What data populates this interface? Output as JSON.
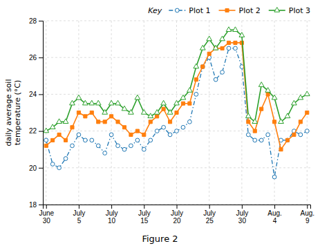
{
  "chart_data": {
    "type": "line",
    "title": "Figure 2",
    "ylabel": "daily average soil\ntemperature (°C)",
    "categories": [
      "June\n30",
      null,
      null,
      null,
      null,
      "July\n5",
      null,
      null,
      null,
      null,
      "July\n10",
      null,
      null,
      null,
      null,
      "July\n15",
      null,
      null,
      null,
      null,
      "July\n20",
      null,
      null,
      null,
      null,
      "July\n25",
      null,
      null,
      null,
      null,
      "July\n30",
      null,
      null,
      null,
      null,
      "Aug.\n4",
      null,
      null,
      null,
      null,
      "Aug.\n9"
    ],
    "series": [
      {
        "name": "Plot 1",
        "marker": "circle",
        "line_style": "dashdot",
        "values": [
          21.5,
          20.2,
          20.0,
          20.5,
          21.2,
          21.8,
          21.5,
          21.5,
          21.2,
          20.8,
          21.8,
          21.2,
          21.0,
          21.2,
          21.5,
          21.0,
          21.5,
          22.0,
          22.2,
          21.8,
          22.0,
          22.2,
          22.5,
          24.0,
          25.5,
          26.0,
          24.8,
          25.2,
          26.5,
          26.5,
          25.5,
          21.8,
          21.5,
          21.5,
          21.8,
          19.5,
          21.5,
          21.5,
          22.0,
          21.8,
          22.0
        ]
      },
      {
        "name": "Plot 2",
        "marker": "square",
        "line_style": "solid",
        "values": [
          21.2,
          21.5,
          21.8,
          21.5,
          22.2,
          23.0,
          22.8,
          23.0,
          22.5,
          22.5,
          22.8,
          22.5,
          22.2,
          21.8,
          22.0,
          21.8,
          22.5,
          22.8,
          23.2,
          22.5,
          23.0,
          23.5,
          23.5,
          24.8,
          25.5,
          26.2,
          26.5,
          26.5,
          26.8,
          26.8,
          26.8,
          22.5,
          22.0,
          23.2,
          24.0,
          22.5,
          21.0,
          21.5,
          21.8,
          22.5,
          23.0
        ]
      },
      {
        "name": "Plot 3",
        "marker": "triangle",
        "line_style": "solid",
        "values": [
          22.0,
          22.2,
          22.5,
          22.5,
          23.5,
          23.8,
          23.5,
          23.5,
          23.5,
          23.0,
          23.5,
          23.5,
          23.2,
          23.0,
          23.8,
          23.0,
          22.8,
          23.0,
          23.5,
          23.0,
          23.5,
          23.8,
          24.2,
          25.5,
          26.5,
          27.0,
          26.5,
          27.0,
          27.5,
          27.5,
          27.2,
          22.8,
          22.5,
          24.5,
          24.2,
          23.8,
          22.5,
          22.8,
          23.5,
          23.8,
          24.0
        ]
      }
    ],
    "ylim": [
      18,
      28
    ],
    "yticks": [
      18,
      20,
      22,
      24,
      26,
      28
    ],
    "grid": true,
    "legend": "upper right",
    "legend_title": "Key"
  }
}
